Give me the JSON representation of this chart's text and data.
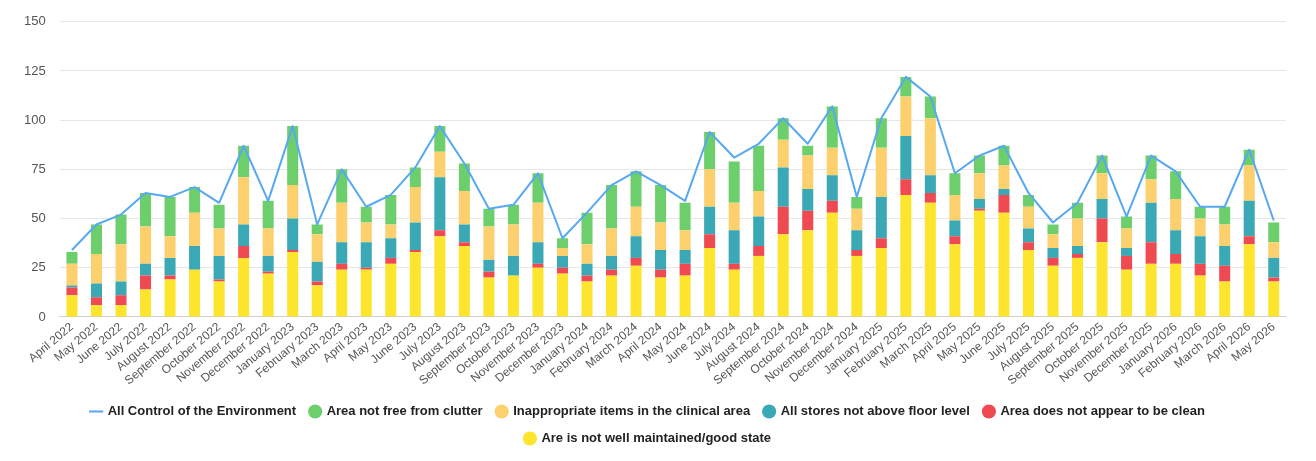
{
  "chart_data": {
    "type": "bar",
    "stacked": true,
    "categories": [
      "April 2022",
      "May 2022",
      "June 2022",
      "July 2022",
      "August 2022",
      "September 2022",
      "October 2022",
      "November 2022",
      "December 2022",
      "January 2023",
      "February 2023",
      "March 2023",
      "April 2023",
      "May 2023",
      "June 2023",
      "July 2023",
      "August 2023",
      "September 2023",
      "October 2023",
      "November 2023",
      "December 2023",
      "January 2024",
      "February 2024",
      "March 2024",
      "April 2024",
      "May 2024",
      "June 2024",
      "July 2024",
      "August 2024",
      "September 2024",
      "October 2024",
      "November 2024",
      "December 2024",
      "January 2025",
      "February 2025",
      "March 2025",
      "April 2025",
      "May 2025",
      "June 2025",
      "July 2025",
      "August 2025",
      "September 2025",
      "October 2025",
      "November 2025",
      "December 2025",
      "January 2026",
      "February 2026",
      "March 2026",
      "April 2026",
      "May 2026"
    ],
    "series": [
      {
        "name": "Are is not well maintained/good state",
        "color": "#fde52e",
        "values": [
          11,
          6,
          6,
          14,
          19,
          24,
          18,
          30,
          22,
          33,
          16,
          24,
          24,
          27,
          33,
          41,
          36,
          20,
          21,
          25,
          22,
          18,
          21,
          26,
          20,
          21,
          35,
          24,
          31,
          42,
          44,
          53,
          31,
          35,
          62,
          58,
          37,
          54,
          53,
          34,
          26,
          30,
          38,
          24,
          27,
          27,
          21,
          18,
          37,
          18
        ]
      },
      {
        "name": "Area does not appear to be clean",
        "color": "#ef4a52",
        "values": [
          4,
          4,
          5,
          7,
          2,
          0,
          1,
          6,
          1,
          1,
          2,
          3,
          1,
          3,
          1,
          3,
          2,
          3,
          0,
          2,
          3,
          3,
          3,
          4,
          4,
          6,
          7,
          3,
          5,
          14,
          10,
          6,
          3,
          5,
          8,
          5,
          4,
          1,
          9,
          4,
          4,
          2,
          12,
          7,
          11,
          5,
          6,
          8,
          4,
          2
        ]
      },
      {
        "name": "All stores not above floor level",
        "color": "#3aa9b5",
        "values": [
          1,
          7,
          7,
          6,
          9,
          12,
          12,
          11,
          8,
          16,
          10,
          11,
          13,
          10,
          14,
          27,
          9,
          6,
          10,
          11,
          6,
          6,
          7,
          11,
          10,
          7,
          14,
          17,
          15,
          20,
          11,
          13,
          10,
          21,
          22,
          9,
          8,
          5,
          3,
          7,
          5,
          4,
          10,
          4,
          20,
          12,
          14,
          10,
          18,
          10
        ]
      },
      {
        "name": "Inappropriate items in the clinical area",
        "color": "#fdd06e",
        "values": [
          11,
          15,
          19,
          19,
          11,
          17,
          14,
          24,
          14,
          17,
          14,
          20,
          10,
          7,
          18,
          13,
          17,
          17,
          16,
          20,
          4,
          10,
          14,
          15,
          14,
          10,
          19,
          14,
          13,
          14,
          17,
          14,
          11,
          25,
          20,
          29,
          13,
          13,
          12,
          11,
          7,
          14,
          13,
          10,
          12,
          16,
          9,
          11,
          18,
          8
        ]
      },
      {
        "name": "Area not free from clutter",
        "color": "#6dcf6b",
        "values": [
          6,
          15,
          15,
          17,
          20,
          13,
          12,
          16,
          14,
          30,
          5,
          17,
          8,
          15,
          10,
          13,
          14,
          9,
          10,
          15,
          5,
          16,
          22,
          18,
          19,
          14,
          19,
          21,
          23,
          11,
          5,
          21,
          6,
          15,
          10,
          11,
          11,
          9,
          10,
          6,
          5,
          8,
          9,
          6,
          12,
          14,
          6,
          9,
          8,
          10
        ]
      },
      {
        "name": "All Control of the Environment",
        "type": "line",
        "color": "#56a8f0",
        "values": [
          34,
          47,
          52,
          63,
          61,
          66,
          58,
          87,
          59,
          97,
          47,
          75,
          56,
          62,
          76,
          97,
          78,
          55,
          57,
          73,
          40,
          53,
          67,
          74,
          67,
          59,
          94,
          81,
          88,
          101,
          88,
          107,
          61,
          101,
          122,
          112,
          73,
          82,
          87,
          63,
          48,
          58,
          82,
          51,
          82,
          74,
          56,
          56,
          85,
          49
        ]
      }
    ],
    "ylim": [
      0,
      150
    ],
    "yticks": [
      0,
      25,
      50,
      75,
      100,
      125,
      150
    ],
    "grid": "y",
    "legend": "bottom",
    "marker": "none",
    "line_style": "solid"
  }
}
